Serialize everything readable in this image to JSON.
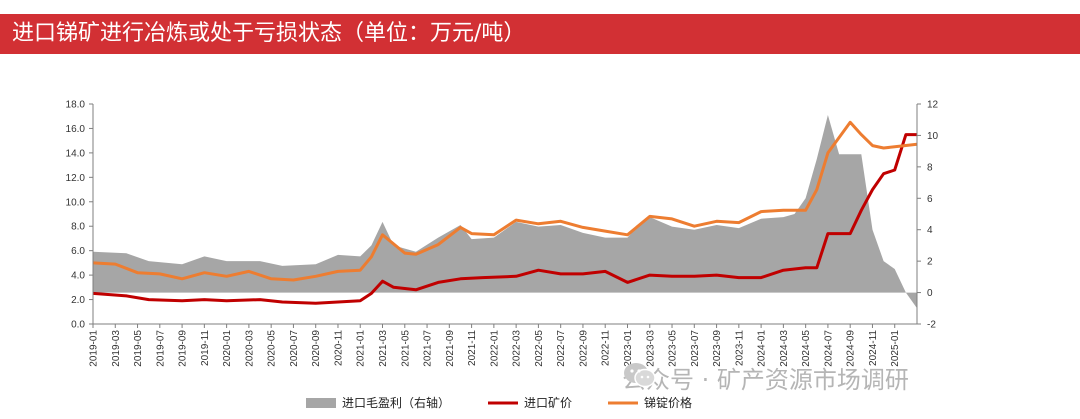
{
  "header": {
    "title": "进口锑矿进行冶炼或处于亏损状态（单位：万元/吨）"
  },
  "watermark": {
    "text": "公众号 · 矿产资源市场调研"
  },
  "colors": {
    "header_bg": "#d23034",
    "area": "#a6a6a6",
    "ore": "#c00000",
    "ingot": "#ed7d31"
  },
  "chart_data": {
    "type": "line",
    "title": "",
    "xlabel": "",
    "ylabel": "",
    "ylim": [
      0,
      18
    ],
    "y2lim": [
      -2,
      12
    ],
    "yticks": [
      "0.0",
      "2.0",
      "4.0",
      "6.0",
      "8.0",
      "10.0",
      "12.0",
      "14.0",
      "16.0",
      "18.0"
    ],
    "y2ticks": [
      "-2",
      "0",
      "2",
      "4",
      "6",
      "8",
      "10",
      "12"
    ],
    "x_tick_labels": [
      "2019-01",
      "2019-03",
      "2019-05",
      "2019-07",
      "2019-09",
      "2019-11",
      "2020-01",
      "2020-03",
      "2020-05",
      "2020-07",
      "2020-09",
      "2020-11",
      "2021-01",
      "2021-03",
      "2021-05",
      "2021-07",
      "2021-09",
      "2021-11",
      "2022-01",
      "2022-03",
      "2022-05",
      "2022-07",
      "2022-09",
      "2022-11",
      "2023-01",
      "2023-03",
      "2023-05",
      "2023-07",
      "2023-09",
      "2023-11",
      "2024-01",
      "2024-03",
      "2024-05",
      "2024-07",
      "2024-09",
      "2024-11",
      "2025-01"
    ],
    "legend": {
      "position": "bottom"
    },
    "series": [
      {
        "name": "进口毛盈利（右轴）",
        "type": "area",
        "axis": "right",
        "points": [
          [
            "2019-01",
            2.6
          ],
          [
            "2019-04",
            2.5
          ],
          [
            "2019-06",
            2.0
          ],
          [
            "2019-09",
            1.8
          ],
          [
            "2019-11",
            2.3
          ],
          [
            "2020-01",
            2.0
          ],
          [
            "2020-04",
            2.0
          ],
          [
            "2020-06",
            1.7
          ],
          [
            "2020-09",
            1.8
          ],
          [
            "2020-11",
            2.4
          ],
          [
            "2021-01",
            2.3
          ],
          [
            "2021-02",
            3.0
          ],
          [
            "2021-03",
            4.5
          ],
          [
            "2021-04",
            3.0
          ],
          [
            "2021-06",
            2.6
          ],
          [
            "2021-08",
            3.5
          ],
          [
            "2021-10",
            4.3
          ],
          [
            "2021-11",
            3.4
          ],
          [
            "2022-01",
            3.5
          ],
          [
            "2022-03",
            4.5
          ],
          [
            "2022-05",
            4.2
          ],
          [
            "2022-07",
            4.3
          ],
          [
            "2022-09",
            3.8
          ],
          [
            "2022-11",
            3.5
          ],
          [
            "2023-01",
            3.5
          ],
          [
            "2023-02",
            4.3
          ],
          [
            "2023-03",
            4.8
          ],
          [
            "2023-05",
            4.2
          ],
          [
            "2023-07",
            4.0
          ],
          [
            "2023-09",
            4.3
          ],
          [
            "2023-11",
            4.1
          ],
          [
            "2024-01",
            4.7
          ],
          [
            "2024-03",
            4.8
          ],
          [
            "2024-04",
            5.0
          ],
          [
            "2024-05",
            6.0
          ],
          [
            "2024-06",
            8.5
          ],
          [
            "2024-07",
            11.3
          ],
          [
            "2024-08",
            8.8
          ],
          [
            "2024-10",
            8.8
          ],
          [
            "2024-11",
            4.0
          ],
          [
            "2024-12",
            2.0
          ],
          [
            "2025-01",
            1.5
          ],
          [
            "2025-02",
            0.0
          ],
          [
            "2025-03",
            -1.0
          ]
        ]
      },
      {
        "name": "进口矿价",
        "type": "line",
        "axis": "left",
        "points": [
          [
            "2019-01",
            2.5
          ],
          [
            "2019-04",
            2.3
          ],
          [
            "2019-06",
            2.0
          ],
          [
            "2019-09",
            1.9
          ],
          [
            "2019-11",
            2.0
          ],
          [
            "2020-01",
            1.9
          ],
          [
            "2020-04",
            2.0
          ],
          [
            "2020-06",
            1.8
          ],
          [
            "2020-09",
            1.7
          ],
          [
            "2020-11",
            1.8
          ],
          [
            "2021-01",
            1.9
          ],
          [
            "2021-02",
            2.5
          ],
          [
            "2021-03",
            3.5
          ],
          [
            "2021-04",
            3.0
          ],
          [
            "2021-06",
            2.8
          ],
          [
            "2021-08",
            3.4
          ],
          [
            "2021-10",
            3.7
          ],
          [
            "2021-12",
            3.8
          ],
          [
            "2022-03",
            3.9
          ],
          [
            "2022-05",
            4.4
          ],
          [
            "2022-07",
            4.1
          ],
          [
            "2022-09",
            4.1
          ],
          [
            "2022-11",
            4.3
          ],
          [
            "2023-01",
            3.4
          ],
          [
            "2023-03",
            4.0
          ],
          [
            "2023-05",
            3.9
          ],
          [
            "2023-07",
            3.9
          ],
          [
            "2023-09",
            4.0
          ],
          [
            "2023-11",
            3.8
          ],
          [
            "2024-01",
            3.8
          ],
          [
            "2024-03",
            4.4
          ],
          [
            "2024-05",
            4.6
          ],
          [
            "2024-06",
            4.6
          ],
          [
            "2024-07",
            7.4
          ],
          [
            "2024-09",
            7.4
          ],
          [
            "2024-10",
            9.3
          ],
          [
            "2024-11",
            11.0
          ],
          [
            "2024-12",
            12.3
          ],
          [
            "2025-01",
            12.6
          ],
          [
            "2025-02",
            15.5
          ],
          [
            "2025-03",
            15.5
          ]
        ]
      },
      {
        "name": "锑锭价格",
        "type": "line",
        "axis": "left",
        "points": [
          [
            "2019-01",
            5.0
          ],
          [
            "2019-03",
            4.9
          ],
          [
            "2019-05",
            4.2
          ],
          [
            "2019-07",
            4.1
          ],
          [
            "2019-09",
            3.7
          ],
          [
            "2019-11",
            4.2
          ],
          [
            "2020-01",
            3.9
          ],
          [
            "2020-03",
            4.3
          ],
          [
            "2020-05",
            3.7
          ],
          [
            "2020-07",
            3.6
          ],
          [
            "2020-09",
            3.9
          ],
          [
            "2020-11",
            4.3
          ],
          [
            "2021-01",
            4.4
          ],
          [
            "2021-02",
            5.5
          ],
          [
            "2021-03",
            7.3
          ],
          [
            "2021-05",
            5.8
          ],
          [
            "2021-06",
            5.7
          ],
          [
            "2021-08",
            6.5
          ],
          [
            "2021-10",
            7.9
          ],
          [
            "2021-11",
            7.4
          ],
          [
            "2022-01",
            7.3
          ],
          [
            "2022-03",
            8.5
          ],
          [
            "2022-05",
            8.2
          ],
          [
            "2022-07",
            8.4
          ],
          [
            "2022-09",
            7.9
          ],
          [
            "2022-11",
            7.6
          ],
          [
            "2023-01",
            7.3
          ],
          [
            "2023-03",
            8.8
          ],
          [
            "2023-05",
            8.6
          ],
          [
            "2023-07",
            8.0
          ],
          [
            "2023-09",
            8.4
          ],
          [
            "2023-11",
            8.3
          ],
          [
            "2024-01",
            9.2
          ],
          [
            "2024-03",
            9.3
          ],
          [
            "2024-05",
            9.3
          ],
          [
            "2024-06",
            11.0
          ],
          [
            "2024-07",
            14.0
          ],
          [
            "2024-09",
            16.5
          ],
          [
            "2024-10",
            15.5
          ],
          [
            "2024-11",
            14.6
          ],
          [
            "2024-12",
            14.4
          ],
          [
            "2025-01",
            14.5
          ],
          [
            "2025-03",
            14.7
          ]
        ]
      }
    ]
  }
}
